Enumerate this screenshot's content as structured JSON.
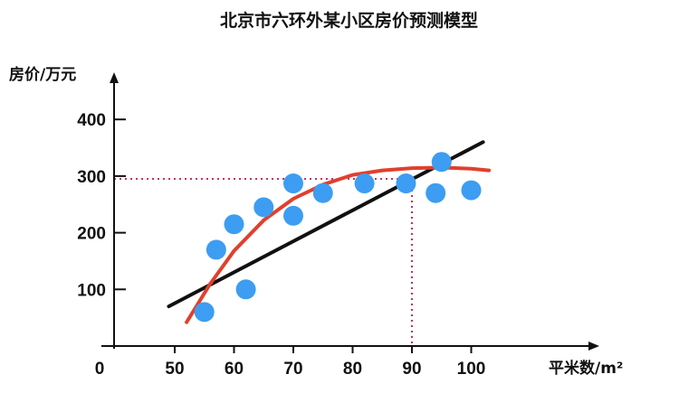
{
  "chart_data": {
    "type": "scatter",
    "title": "北京市六环外某小区房价预测模型",
    "xlabel": "平米数/m²",
    "ylabel": "房价/万元",
    "origin_label": "0",
    "x_ticks": [
      50,
      60,
      70,
      80,
      90,
      100
    ],
    "y_ticks": [
      100,
      200,
      300,
      400
    ],
    "xlim": [
      42,
      108
    ],
    "ylim": [
      0,
      470
    ],
    "grid": false,
    "points": [
      {
        "x": 55,
        "y": 60
      },
      {
        "x": 57,
        "y": 170
      },
      {
        "x": 60,
        "y": 215
      },
      {
        "x": 62,
        "y": 100
      },
      {
        "x": 65,
        "y": 245
      },
      {
        "x": 70,
        "y": 287
      },
      {
        "x": 70,
        "y": 230
      },
      {
        "x": 75,
        "y": 270
      },
      {
        "x": 82,
        "y": 287
      },
      {
        "x": 89,
        "y": 287
      },
      {
        "x": 94,
        "y": 270
      },
      {
        "x": 95,
        "y": 325
      },
      {
        "x": 100,
        "y": 275
      }
    ],
    "linear_fit": {
      "x": [
        49,
        102
      ],
      "y": [
        70,
        360
      ]
    },
    "curve_fit": {
      "x": [
        52,
        56,
        60,
        65,
        70,
        75,
        80,
        85,
        90,
        95,
        100,
        103
      ],
      "y": [
        42,
        110,
        168,
        222,
        260,
        285,
        302,
        310,
        314,
        315,
        313,
        310
      ]
    },
    "reference": {
      "x": 90,
      "y": 295
    },
    "colors": {
      "points": "#3d9df2",
      "linear": "#111111",
      "curve": "#e0402e",
      "reference": "#c0306a",
      "axis": "#111111"
    }
  }
}
